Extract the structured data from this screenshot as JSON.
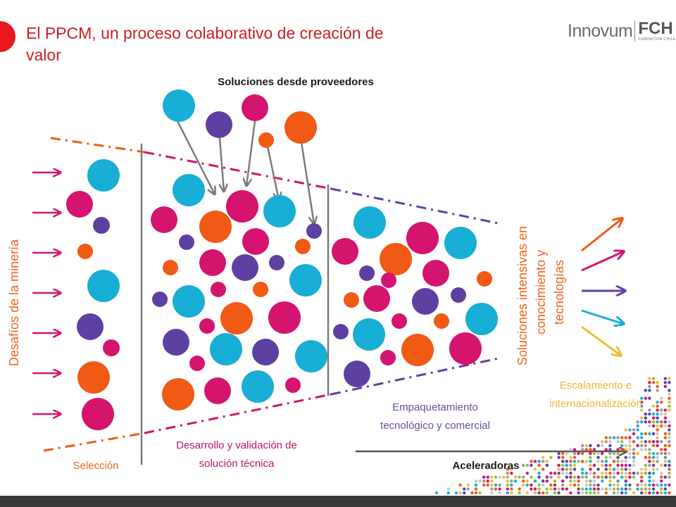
{
  "header": {
    "title": "El PPCM, un proceso colaborativo de creación de valor",
    "logo_word": "Innovum",
    "logo_mark": "FCH",
    "logo_sub": "FUNDACIÓN CHILE"
  },
  "labels": {
    "proveedores": "Soluciones desde proveedores",
    "desafios": "Desafíos de la minería",
    "soluciones_intensivas": [
      "Soluciones intensivas en",
      "conocimiento y",
      "tecnologías"
    ],
    "escalamiento": [
      "Escalamiento e",
      "internacionalización"
    ],
    "empaquetamiento": [
      "Empaquetamiento",
      "tecnológico y comercial"
    ],
    "desarrollo": [
      "Desarrollo y validación de",
      "solución técnica"
    ],
    "seleccion": "Selección",
    "aceleradoras": "Aceleradoras"
  },
  "colors": {
    "title_red": "#cc1f1f",
    "orange": "#f05a14",
    "magenta": "#d4146e",
    "purple": "#5e3fa2",
    "cyan": "#19aed6",
    "yellow": "#f3bd3c",
    "gray_line": "#7a7a7a",
    "label_orange": "#f0641e",
    "label_purple": "#6b4ba0",
    "label_yellow": "#f2b134",
    "label_magenta": "#c0136a"
  }
}
